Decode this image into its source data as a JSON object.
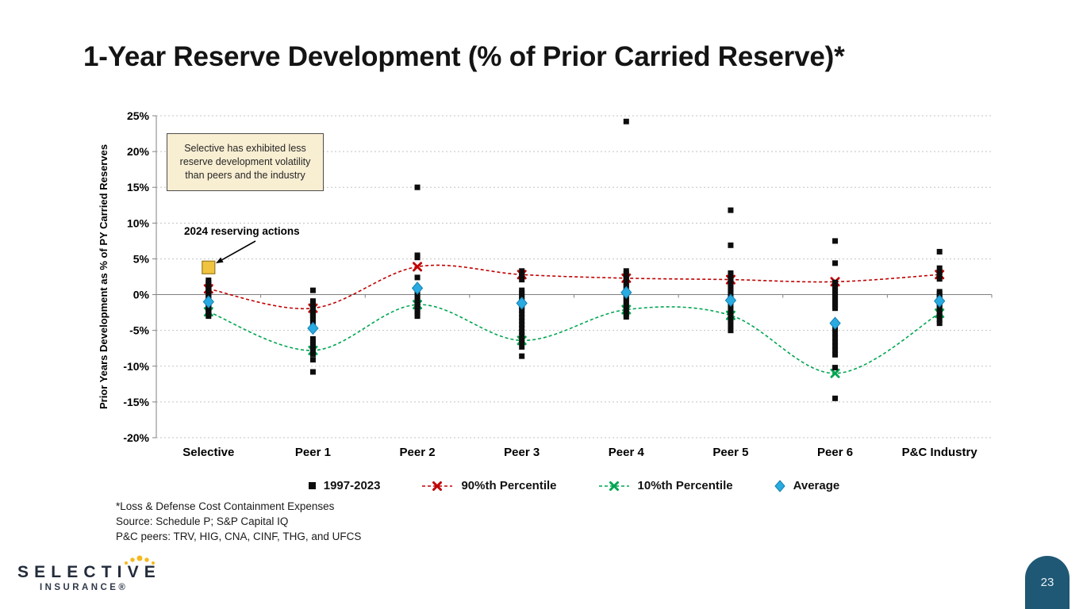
{
  "slide": {
    "title": "1-Year Reserve Development (% of Prior Carried Reserve)*",
    "page_number": "23",
    "footnotes": [
      "*Loss & Defense Cost Containment Expenses",
      "Source: Schedule P; S&P Capital IQ",
      "P&C peers: TRV, HIG, CNA, CINF, THG, and UFCS"
    ],
    "logo": {
      "brand": "SELECTIVE",
      "sub": "INSURANCE®"
    }
  },
  "annotation": {
    "box_text": "Selective has exhibited less reserve development volatility than peers and the industry",
    "callout_label": "2024 reserving actions"
  },
  "chart_data": {
    "type": "scatter",
    "title": "",
    "xlabel": "",
    "ylabel": "Prior Years Development as % of PY Carried Reserves",
    "ylim": [
      -20,
      25
    ],
    "ytick_step": 5,
    "ytick_format": "percent",
    "grid": "horizontal-dotted",
    "legend_position": "bottom",
    "categories": [
      "Selective",
      "Peer 1",
      "Peer 2",
      "Peer 3",
      "Peer 4",
      "Peer 5",
      "Peer 6",
      "P&C Industry"
    ],
    "scatter_series_name": "1997-2023",
    "scatter_color": "#0D0D0D",
    "scatter_points": [
      [
        2.0,
        1.7,
        1.5,
        1.3,
        1.1,
        0.9,
        0.7,
        0.5,
        0.3,
        0.1,
        -0.1,
        -0.3,
        -0.5,
        -0.8,
        -1.0,
        -1.2,
        -1.4,
        -1.6,
        -1.8,
        -2.0,
        -2.2,
        -2.4,
        -2.7,
        -3.0
      ],
      [
        0.6,
        -0.9,
        -1.2,
        -1.5,
        -1.8,
        -2.0,
        -2.2,
        -2.4,
        -2.6,
        -2.8,
        -3.0,
        -3.3,
        -3.6,
        -4.0,
        -6.2,
        -6.6,
        -7.0,
        -7.4,
        -7.8,
        -8.3,
        -9.1,
        -10.8
      ],
      [
        15.0,
        5.5,
        5.2,
        2.4,
        0.3,
        0.0,
        -0.3,
        -0.5,
        -0.7,
        -0.9,
        -1.1,
        -1.3,
        -1.5,
        -1.7,
        -1.9,
        -2.1,
        -2.4,
        -2.7,
        -3.0
      ],
      [
        3.3,
        2.9,
        2.5,
        2.1,
        0.6,
        0.2,
        -0.2,
        -0.6,
        -1.0,
        -1.4,
        -1.8,
        -2.2,
        -2.7,
        -3.2,
        -3.7,
        -4.2,
        -4.7,
        -5.2,
        -5.7,
        -6.2,
        -6.7,
        -7.3,
        -8.6
      ],
      [
        24.2,
        3.3,
        2.9,
        2.5,
        2.1,
        1.7,
        1.3,
        0.9,
        0.5,
        0.1,
        -0.3,
        -0.7,
        -1.1,
        -1.5,
        -1.9,
        -2.3,
        -2.7,
        -3.1
      ],
      [
        11.8,
        6.9,
        3.0,
        2.6,
        2.2,
        1.8,
        1.4,
        1.0,
        0.6,
        0.2,
        -0.2,
        -0.6,
        -1.0,
        -1.5,
        -2.0,
        -2.5,
        -3.0,
        -3.6,
        -4.3,
        -5.0
      ],
      [
        7.5,
        4.4,
        1.7,
        1.3,
        0.9,
        0.5,
        0.1,
        -0.3,
        -0.7,
        -1.1,
        -1.5,
        -1.9,
        -4.8,
        -5.4,
        -6.0,
        -6.6,
        -7.2,
        -7.8,
        -8.4,
        -10.2,
        -14.5
      ],
      [
        6.0,
        3.7,
        3.2,
        2.7,
        2.2,
        0.4,
        0.1,
        -0.2,
        -0.5,
        -0.9,
        -1.3,
        -1.7,
        -2.1,
        -2.5,
        -3.0,
        -3.5,
        -4.0
      ]
    ],
    "lines": [
      {
        "name": "90%th Percentile",
        "color": "#C00000",
        "style": "dashed",
        "marker": "x",
        "values": [
          0.8,
          -1.9,
          3.9,
          2.8,
          2.3,
          2.1,
          1.8,
          2.8
        ]
      },
      {
        "name": "10%th Percentile",
        "color": "#00A651",
        "style": "dashed",
        "marker": "x",
        "values": [
          -2.4,
          -7.8,
          -1.4,
          -6.4,
          -2.1,
          -2.9,
          -11.0,
          -2.6
        ]
      }
    ],
    "average_series": {
      "name": "Average",
      "color": "#29ABE2",
      "marker": "diamond",
      "values": [
        -1.0,
        -4.7,
        0.9,
        -1.2,
        0.3,
        -0.8,
        -4.0,
        -0.9
      ]
    },
    "highlight": {
      "label": "2024 reserving actions",
      "category_index": 0,
      "value": 3.8,
      "color": "#F0C440"
    },
    "legend_items": [
      {
        "label": "1997-2023",
        "marker": "square",
        "color": "#000000"
      },
      {
        "label": "90%th Percentile",
        "marker": "x-dashed",
        "color": "#C00000"
      },
      {
        "label": "10%th Percentile",
        "marker": "x-dashed",
        "color": "#00A651"
      },
      {
        "label": "Average",
        "marker": "diamond",
        "color": "#29ABE2"
      }
    ]
  },
  "colors": {
    "accent_badge": "#1F5874",
    "annotation_bg": "#F8EED2",
    "logo_navy": "#232C3B",
    "logo_gold": "#F5B91F",
    "grid": "#C3C3C3",
    "axis": "#808080"
  }
}
